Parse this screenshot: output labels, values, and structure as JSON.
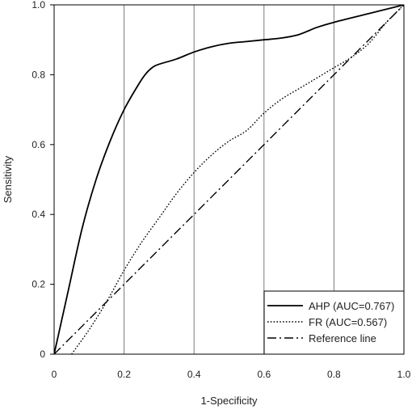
{
  "chart_data": {
    "type": "line",
    "title": "",
    "xlabel": "1-Specificity",
    "ylabel": "Sensitivity",
    "xlim": [
      0,
      1
    ],
    "ylim": [
      0,
      1
    ],
    "x_ticks": [
      0,
      0.2,
      0.4,
      0.6,
      0.8,
      1.0
    ],
    "y_ticks": [
      0,
      0.2,
      0.4,
      0.6,
      0.8,
      1.0
    ],
    "x_tick_labels": [
      "0",
      "0.2",
      "0.4",
      "0.6",
      "0.8",
      "1.0"
    ],
    "y_tick_labels": [
      "0",
      "0.2",
      "0.4",
      "0.6",
      "0.8",
      "1.0"
    ],
    "grid": "vertical",
    "legend_position": "bottom-right",
    "series": [
      {
        "name": "AHP (AUC=0.767)",
        "style": "solid",
        "color": "#000000",
        "x": [
          0,
          0.04,
          0.08,
          0.12,
          0.16,
          0.2,
          0.24,
          0.26,
          0.28,
          0.3,
          0.35,
          0.4,
          0.45,
          0.5,
          0.55,
          0.6,
          0.65,
          0.7,
          0.75,
          0.8,
          0.9,
          1.0
        ],
        "y": [
          0,
          0.18,
          0.36,
          0.5,
          0.61,
          0.7,
          0.77,
          0.8,
          0.82,
          0.83,
          0.845,
          0.865,
          0.88,
          0.89,
          0.895,
          0.9,
          0.905,
          0.915,
          0.935,
          0.95,
          0.975,
          1.0
        ]
      },
      {
        "name": "FR (AUC=0.567)",
        "style": "dotted",
        "color": "#000000",
        "x": [
          0.05,
          0.1,
          0.15,
          0.2,
          0.25,
          0.3,
          0.35,
          0.4,
          0.45,
          0.5,
          0.55,
          0.6,
          0.65,
          0.7,
          0.75,
          0.8,
          0.85,
          0.9,
          0.95,
          1.0
        ],
        "y": [
          0,
          0.07,
          0.15,
          0.24,
          0.32,
          0.39,
          0.46,
          0.52,
          0.57,
          0.61,
          0.64,
          0.69,
          0.73,
          0.76,
          0.79,
          0.82,
          0.85,
          0.89,
          0.95,
          1.0
        ]
      },
      {
        "name": "Reference line",
        "style": "dashdot",
        "color": "#000000",
        "x": [
          0,
          1
        ],
        "y": [
          0,
          1
        ]
      }
    ]
  }
}
